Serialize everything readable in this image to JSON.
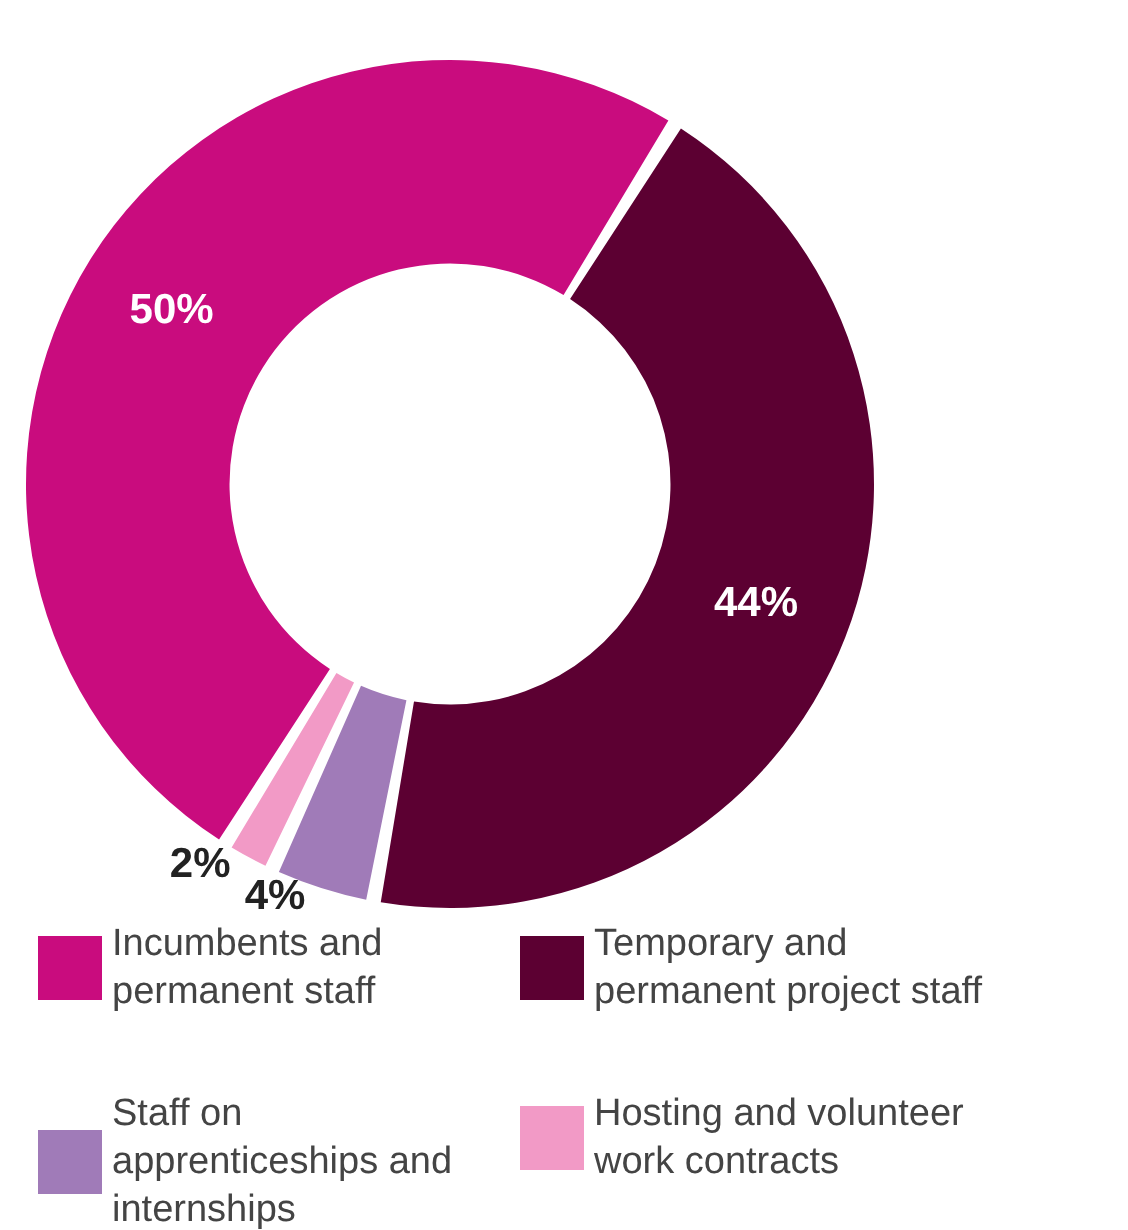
{
  "chart_data": {
    "type": "donut",
    "categories": [
      "Incumbents and permanent staff",
      "Temporary and permanent project staff",
      "Staff on apprenticeships and internships",
      "Hosting and volunteer work contracts"
    ],
    "values": [
      50,
      44,
      4,
      2
    ],
    "colors": [
      "#c90c7e",
      "#5c0032",
      "#a07bb8",
      "#f29ac6"
    ],
    "value_labels": [
      "50%",
      "44%",
      "4%",
      "2%"
    ],
    "legend": "bottom"
  }
}
